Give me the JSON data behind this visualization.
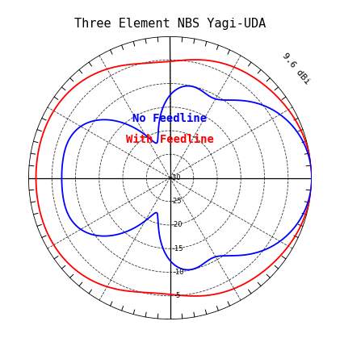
{
  "title": "Three Element NBS Yagi-UDA",
  "legend_no_feedline": "No Feedline",
  "legend_with_feedline": "With Feedline",
  "color_no_feedline": "blue",
  "color_with_feedline": "red",
  "max_gain_label": "9.6 dBi",
  "db_rings": [
    -5,
    -10,
    -15,
    -20,
    -25,
    -30
  ],
  "db_ring_labels": [
    "-5",
    "-10",
    "-15",
    "-20",
    "-25",
    "-30"
  ],
  "db_min": -30,
  "background_color": "white",
  "title_fontsize": 11,
  "legend_fontsize": 10
}
